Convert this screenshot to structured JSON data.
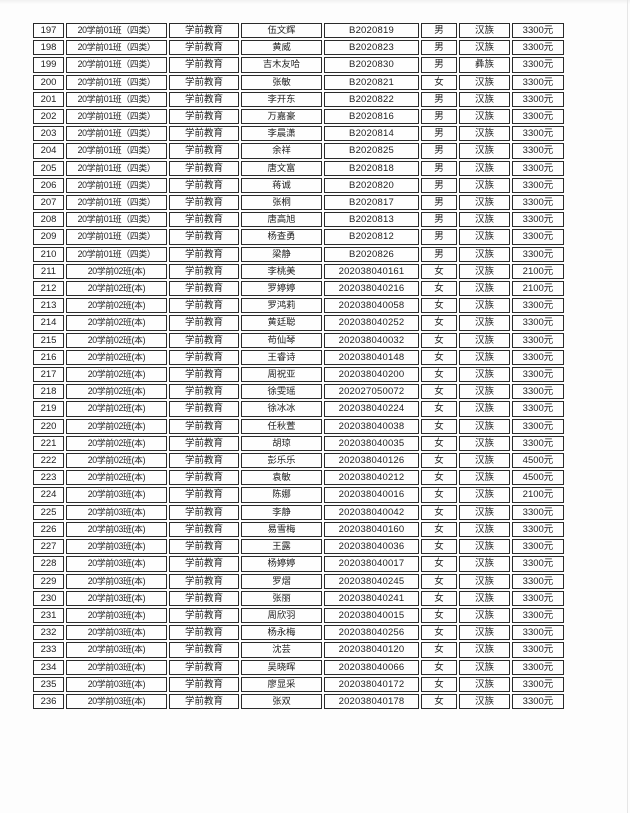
{
  "page": {
    "background": "#fdfdfd",
    "border_color": "#2a2a2a",
    "text_color": "#212121"
  },
  "table": {
    "column_keys": [
      "no",
      "class",
      "major",
      "name",
      "student_id",
      "gender",
      "ethnicity",
      "fee"
    ],
    "rows": [
      [
        "197",
        "20学前01班（四类）",
        "学前教育",
        "伍文辉",
        "B2020819",
        "男",
        "汉族",
        "3300元"
      ],
      [
        "198",
        "20学前01班（四类）",
        "学前教育",
        "黄威",
        "B2020823",
        "男",
        "汉族",
        "3300元"
      ],
      [
        "199",
        "20学前01班（四类）",
        "学前教育",
        "吉木友哈",
        "B2020830",
        "男",
        "彝族",
        "3300元"
      ],
      [
        "200",
        "20学前01班（四类）",
        "学前教育",
        "张敏",
        "B2020821",
        "女",
        "汉族",
        "3300元"
      ],
      [
        "201",
        "20学前01班（四类）",
        "学前教育",
        "李开东",
        "B2020822",
        "男",
        "汉族",
        "3300元"
      ],
      [
        "202",
        "20学前01班（四类）",
        "学前教育",
        "万嘉豪",
        "B2020816",
        "男",
        "汉族",
        "3300元"
      ],
      [
        "203",
        "20学前01班（四类）",
        "学前教育",
        "李晨潇",
        "B2020814",
        "男",
        "汉族",
        "3300元"
      ],
      [
        "204",
        "20学前01班（四类）",
        "学前教育",
        "余祥",
        "B2020825",
        "男",
        "汉族",
        "3300元"
      ],
      [
        "205",
        "20学前01班（四类）",
        "学前教育",
        "唐文富",
        "B2020818",
        "男",
        "汉族",
        "3300元"
      ],
      [
        "206",
        "20学前01班（四类）",
        "学前教育",
        "蒋诚",
        "B2020820",
        "男",
        "汉族",
        "3300元"
      ],
      [
        "207",
        "20学前01班（四类）",
        "学前教育",
        "张桐",
        "B2020817",
        "男",
        "汉族",
        "3300元"
      ],
      [
        "208",
        "20学前01班（四类）",
        "学前教育",
        "唐高旭",
        "B2020813",
        "男",
        "汉族",
        "3300元"
      ],
      [
        "209",
        "20学前01班（四类）",
        "学前教育",
        "杨查勇",
        "B2020812",
        "男",
        "汉族",
        "3300元"
      ],
      [
        "210",
        "20学前01班（四类）",
        "学前教育",
        "梁静",
        "B2020826",
        "男",
        "汉族",
        "3300元"
      ],
      [
        "211",
        "20学前02班(本)",
        "学前教育",
        "李桃美",
        "202038040161",
        "女",
        "汉族",
        "2100元"
      ],
      [
        "212",
        "20学前02班(本)",
        "学前教育",
        "罗婷婷",
        "202038040216",
        "女",
        "汉族",
        "2100元"
      ],
      [
        "213",
        "20学前02班(本)",
        "学前教育",
        "罗鸿莉",
        "202038040058",
        "女",
        "汉族",
        "3300元"
      ],
      [
        "214",
        "20学前02班(本)",
        "学前教育",
        "黄廷聪",
        "202038040252",
        "女",
        "汉族",
        "3300元"
      ],
      [
        "215",
        "20学前02班(本)",
        "学前教育",
        "苟仙琴",
        "202038040032",
        "女",
        "汉族",
        "3300元"
      ],
      [
        "216",
        "20学前02班(本)",
        "学前教育",
        "王睿诗",
        "202038040148",
        "女",
        "汉族",
        "3300元"
      ],
      [
        "217",
        "20学前02班(本)",
        "学前教育",
        "周祝亚",
        "202038040200",
        "女",
        "汉族",
        "3300元"
      ],
      [
        "218",
        "20学前02班(本)",
        "学前教育",
        "徐雯瑶",
        "202027050072",
        "女",
        "汉族",
        "3300元"
      ],
      [
        "219",
        "20学前02班(本)",
        "学前教育",
        "徐冰冰",
        "202038040224",
        "女",
        "汉族",
        "3300元"
      ],
      [
        "220",
        "20学前02班(本)",
        "学前教育",
        "任秋萱",
        "202038040038",
        "女",
        "汉族",
        "3300元"
      ],
      [
        "221",
        "20学前02班(本)",
        "学前教育",
        "胡琼",
        "202038040035",
        "女",
        "汉族",
        "3300元"
      ],
      [
        "222",
        "20学前02班(本)",
        "学前教育",
        "彭乐乐",
        "202038040126",
        "女",
        "汉族",
        "4500元"
      ],
      [
        "223",
        "20学前02班(本)",
        "学前教育",
        "袁敏",
        "202038040212",
        "女",
        "汉族",
        "4500元"
      ],
      [
        "224",
        "20学前03班(本)",
        "学前教育",
        "陈娜",
        "202038040016",
        "女",
        "汉族",
        "2100元"
      ],
      [
        "225",
        "20学前03班(本)",
        "学前教育",
        "李静",
        "202038040042",
        "女",
        "汉族",
        "3300元"
      ],
      [
        "226",
        "20学前03班(本)",
        "学前教育",
        "易雪梅",
        "202038040160",
        "女",
        "汉族",
        "3300元"
      ],
      [
        "227",
        "20学前03班(本)",
        "学前教育",
        "王露",
        "202038040036",
        "女",
        "汉族",
        "3300元"
      ],
      [
        "228",
        "20学前03班(本)",
        "学前教育",
        "杨婷婷",
        "202038040017",
        "女",
        "汉族",
        "3300元"
      ],
      [
        "229",
        "20学前03班(本)",
        "学前教育",
        "罗熠",
        "202038040245",
        "女",
        "汉族",
        "3300元"
      ],
      [
        "230",
        "20学前03班(本)",
        "学前教育",
        "张丽",
        "202038040241",
        "女",
        "汉族",
        "3300元"
      ],
      [
        "231",
        "20学前03班(本)",
        "学前教育",
        "周欣羽",
        "202038040015",
        "女",
        "汉族",
        "3300元"
      ],
      [
        "232",
        "20学前03班(本)",
        "学前教育",
        "杨永梅",
        "202038040256",
        "女",
        "汉族",
        "3300元"
      ],
      [
        "233",
        "20学前03班(本)",
        "学前教育",
        "沈芸",
        "202038040120",
        "女",
        "汉族",
        "3300元"
      ],
      [
        "234",
        "20学前03班(本)",
        "学前教育",
        "吴晓晖",
        "202038040066",
        "女",
        "汉族",
        "3300元"
      ],
      [
        "235",
        "20学前03班(本)",
        "学前教育",
        "廖显采",
        "202038040172",
        "女",
        "汉族",
        "3300元"
      ],
      [
        "236",
        "20学前03班(本)",
        "学前教育",
        "张双",
        "202038040178",
        "女",
        "汉族",
        "3300元"
      ]
    ]
  }
}
